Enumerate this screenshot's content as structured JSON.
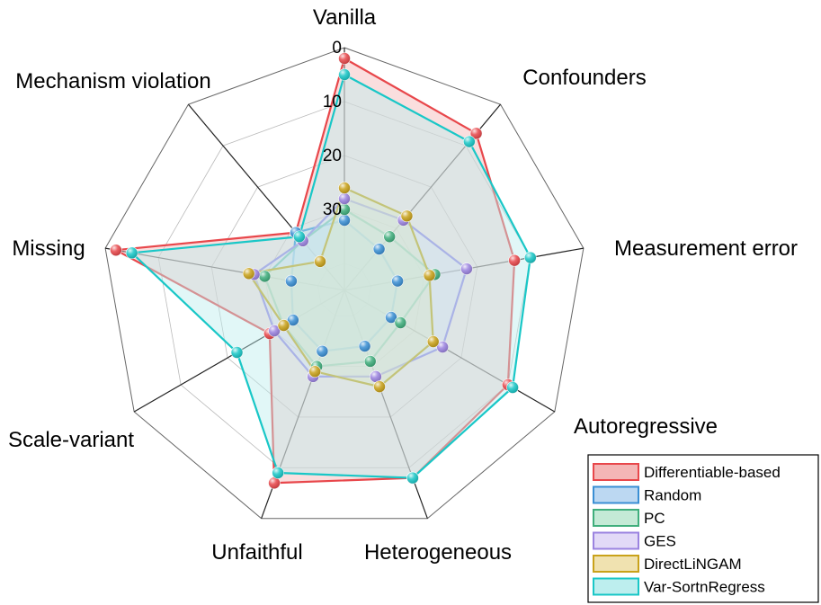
{
  "chart_data": {
    "type": "radar",
    "axes": [
      "Vanilla",
      "Confounders",
      "Measurement error",
      "Autoregressive",
      "Heterogeneous",
      "Unfaithful",
      "Scale-variant",
      "Missing",
      "Mechanism violation"
    ],
    "radial_ticks": [
      "0",
      "10",
      "20",
      "30"
    ],
    "radial_axis": {
      "min": 0,
      "max": 45,
      "reversed": true
    },
    "grid": true,
    "legend_position": "bottom-right",
    "series": [
      {
        "name": "Differentiable-based",
        "color": "#e8474b",
        "fill": "#f4b6b6",
        "values": [
          2,
          7,
          13,
          10,
          8,
          7,
          29,
          2,
          31
        ]
      },
      {
        "name": "Random",
        "color": "#3a8fd4",
        "fill": "#bcd8f2",
        "values": [
          32,
          35,
          35,
          35,
          34,
          33,
          34,
          35,
          31
        ]
      },
      {
        "name": "PC",
        "color": "#3fae7c",
        "fill": "#c4ead6",
        "values": [
          30,
          32,
          28,
          33,
          31,
          30,
          32,
          30,
          33
        ]
      },
      {
        "name": "GES",
        "color": "#9b83e0",
        "fill": "#e2d9f7",
        "values": [
          28,
          28,
          22,
          24,
          28,
          28,
          30,
          28,
          33
        ]
      },
      {
        "name": "DirectLiNGAM",
        "color": "#c9a21a",
        "fill": "#f0e2b0",
        "values": [
          26,
          27,
          29,
          26,
          26,
          29,
          32,
          27,
          38
        ]
      },
      {
        "name": "Var-SortnRegress",
        "color": "#19c7c7",
        "fill": "#bdeeee",
        "values": [
          5,
          9,
          10,
          9,
          8,
          9,
          22,
          5,
          32
        ]
      }
    ]
  }
}
